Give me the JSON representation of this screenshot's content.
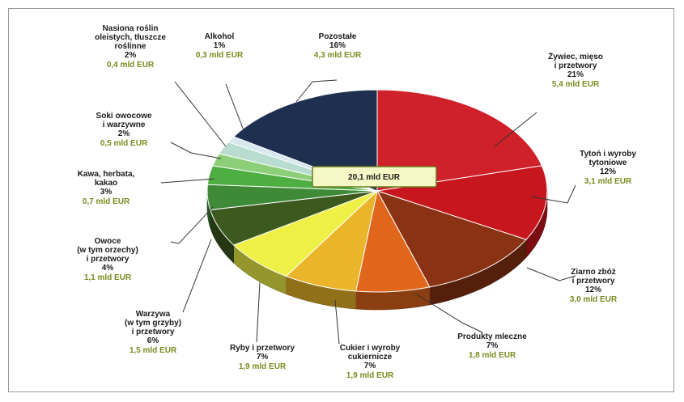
{
  "chart_data": {
    "type": "pie",
    "title": "",
    "total_label": "20,1 mld EUR",
    "slices": [
      {
        "name_lines": [
          "Żywiec, mięso",
          "i przetwory"
        ],
        "pct": "21%",
        "value_label": "5,4 mld EUR",
        "value": 21,
        "color": "#d0202a"
      },
      {
        "name_lines": [
          "Tytoń i wyroby",
          "tytoniowe"
        ],
        "pct": "12%",
        "value_label": "3,1 mld EUR",
        "value": 12,
        "color": "#c8161e"
      },
      {
        "name_lines": [
          "Ziarno zbóż",
          "i przetwory"
        ],
        "pct": "12%",
        "value_label": "3,0 mld EUR",
        "value": 12,
        "color": "#8a3214"
      },
      {
        "name_lines": [
          "Produkty mleczne"
        ],
        "pct": "7%",
        "value_label": "1,8 mld EUR",
        "value": 7,
        "color": "#e0661c"
      },
      {
        "name_lines": [
          "Cukier i wyroby",
          "cukiernicze"
        ],
        "pct": "7%",
        "value_label": "1,9 mld EUR",
        "value": 7,
        "color": "#eab52a"
      },
      {
        "name_lines": [
          "Ryby i przetwory"
        ],
        "pct": "7%",
        "value_label": "1,9 mld EUR",
        "value": 7,
        "color": "#eef046"
      },
      {
        "name_lines": [
          "Warzywa",
          "(w tym grzyby)",
          "i przetwory"
        ],
        "pct": "6%",
        "value_label": "1,5 mld EUR",
        "value": 6,
        "color": "#3d5a1e"
      },
      {
        "name_lines": [
          "Owoce",
          "(w tym orzechy)",
          "i przetwory"
        ],
        "pct": "4%",
        "value_label": "1,1 mld EUR",
        "value": 4,
        "color": "#3f8a36"
      },
      {
        "name_lines": [
          "Kawa, herbata,",
          "kakao"
        ],
        "pct": "3%",
        "value_label": "0,7 mld EUR",
        "value": 3,
        "color": "#4fae42"
      },
      {
        "name_lines": [
          "Soki owocowe",
          "i warzywne"
        ],
        "pct": "2%",
        "value_label": "0,5 mld EUR",
        "value": 2,
        "color": "#8ccf78"
      },
      {
        "name_lines": [
          "Nasiona roślin",
          "oleistych, tłuszcze",
          "roślinne"
        ],
        "pct": "2%",
        "value_label": "0,4 mld EUR",
        "value": 2,
        "color": "#b8dccf"
      },
      {
        "name_lines": [
          "Alkohol"
        ],
        "pct": "1%",
        "value_label": "0,3 mld EUR",
        "value": 1,
        "color": "#d8e8f0"
      },
      {
        "name_lines": [
          "Pozostałe"
        ],
        "pct": "16%",
        "value_label": "4,3 mld EUR",
        "value": 16,
        "color": "#1f2f50"
      }
    ]
  }
}
